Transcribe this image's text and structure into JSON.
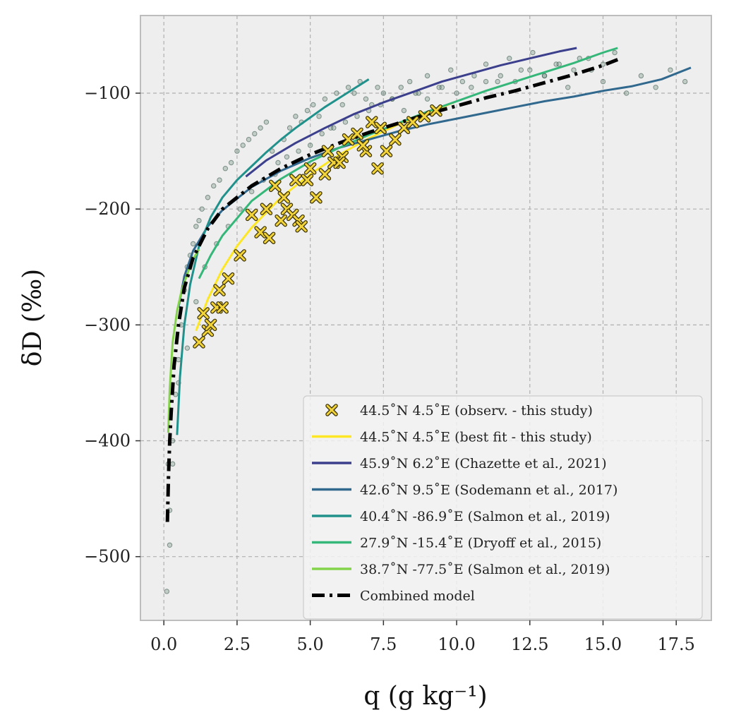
{
  "chart_data": {
    "type": "scatter",
    "xlabel": "q (g kg⁻¹)",
    "ylabel": "δD (‰)",
    "xlim": [
      -0.8,
      18.7
    ],
    "ylim": [
      -555,
      -33
    ],
    "xticks": [
      0.0,
      2.5,
      5.0,
      7.5,
      10.0,
      12.5,
      15.0,
      17.5
    ],
    "xtick_labels": [
      "0.0",
      "2.5",
      "5.0",
      "7.5",
      "10.0",
      "12.5",
      "15.0",
      "17.5"
    ],
    "yticks": [
      -100,
      -200,
      -300,
      -400,
      -500
    ],
    "ytick_labels": [
      "−100",
      "−200",
      "−300",
      "−400",
      "−500"
    ],
    "grid": true,
    "legend_position": "lower-right",
    "series": [
      {
        "name": "44.5˚N 4.5˚E (observ. - this study)",
        "kind": "scatter",
        "marker": "x",
        "color": "#f2d43a",
        "x": [
          1.2,
          1.35,
          1.5,
          1.6,
          1.8,
          1.9,
          2.0,
          2.2,
          2.6,
          3.0,
          3.3,
          3.6,
          3.8,
          4.0,
          4.2,
          4.4,
          4.6,
          4.7,
          4.9,
          5.2,
          5.5,
          5.8,
          6.1,
          6.3,
          6.6,
          6.9,
          7.1,
          7.3,
          7.6,
          7.9,
          8.2,
          8.5,
          8.9,
          9.3,
          3.5,
          4.1,
          4.5,
          5.0,
          5.6,
          6.0,
          6.8,
          7.4
        ],
        "y": [
          -315,
          -290,
          -305,
          -300,
          -285,
          -270,
          -285,
          -260,
          -240,
          -205,
          -220,
          -225,
          -180,
          -210,
          -200,
          -205,
          -210,
          -215,
          -175,
          -190,
          -170,
          -160,
          -155,
          -140,
          -135,
          -150,
          -125,
          -165,
          -150,
          -140,
          -130,
          -125,
          -120,
          -115,
          -200,
          -190,
          -175,
          -165,
          -150,
          -160,
          -145,
          -130
        ]
      },
      {
        "name": "44.5˚N 4.5˚E (best fit - this study)",
        "kind": "line",
        "color": "#fde725",
        "x": [
          1.1,
          1.5,
          2,
          2.5,
          3,
          4,
          5,
          6,
          7,
          8,
          9,
          9.9
        ],
        "y": [
          -305,
          -278,
          -252,
          -232,
          -216,
          -190,
          -170,
          -153,
          -139,
          -127,
          -117,
          -108
        ]
      },
      {
        "name": "45.9˚N 6.2˚E (Chazette et al., 2021)",
        "kind": "line",
        "color": "#3b3f8c",
        "x": [
          2.8,
          3.5,
          4.5,
          5.5,
          6.5,
          7.5,
          8.5,
          9.5,
          10.5,
          11.5,
          12.5,
          13.5,
          14.1
        ],
        "y": [
          -172,
          -158,
          -143,
          -130,
          -118,
          -108,
          -99,
          -90,
          -83,
          -76,
          -70,
          -64,
          -61
        ]
      },
      {
        "name": "42.6˚N 9.5˚E (Sodemann et al., 2017)",
        "kind": "line",
        "color": "#31688e",
        "x": [
          0.5,
          0.7,
          1,
          1.5,
          2,
          3,
          4,
          5,
          6,
          7,
          8,
          9,
          10,
          11,
          12,
          13,
          14,
          15,
          16,
          17,
          18
        ],
        "y": [
          -285,
          -258,
          -236,
          -215,
          -201,
          -181,
          -167,
          -156,
          -147,
          -140,
          -133,
          -127,
          -122,
          -117,
          -112,
          -107,
          -103,
          -98,
          -94,
          -88,
          -78
        ]
      },
      {
        "name": "40.4˚N -86.9˚E (Salmon et al., 2019)",
        "kind": "line",
        "color": "#21918c",
        "x": [
          0.45,
          0.55,
          0.7,
          0.9,
          1.2,
          1.6,
          2,
          2.5,
          3,
          3.5,
          4,
          4.5,
          5,
          5.5,
          6,
          6.5,
          7
        ],
        "y": [
          -395,
          -345,
          -300,
          -265,
          -232,
          -207,
          -190,
          -175,
          -163,
          -151,
          -140,
          -130,
          -121,
          -112,
          -104,
          -96,
          -88
        ]
      },
      {
        "name": "27.9˚N -15.4˚E (Dryoff et al., 2015)",
        "kind": "line",
        "color": "#35b779",
        "x": [
          1.2,
          1.6,
          2,
          3,
          4,
          5,
          6,
          7,
          8,
          9,
          10,
          11,
          12,
          13,
          14,
          15,
          15.5
        ],
        "y": [
          -260,
          -240,
          -223,
          -193,
          -174,
          -159,
          -147,
          -136,
          -126,
          -116,
          -107,
          -98,
          -90,
          -82,
          -74,
          -65,
          -61
        ]
      },
      {
        "name": "38.7˚N -77.5˚E (Salmon et al., 2019)",
        "kind": "line",
        "color": "#84d44b",
        "x": [
          0.15,
          0.2,
          0.3,
          0.45,
          0.6,
          0.8,
          1.0,
          1.2
        ],
        "y": [
          -393,
          -355,
          -315,
          -288,
          -271,
          -256,
          -243,
          -235
        ]
      },
      {
        "name": "Combined model",
        "kind": "line",
        "style": "dashdot",
        "color": "#000000",
        "x": [
          0.12,
          0.16,
          0.2,
          0.25,
          0.35,
          0.5,
          0.7,
          1.0,
          1.5,
          2,
          3,
          4,
          5,
          6,
          7,
          8,
          9,
          10,
          11,
          12,
          13,
          14,
          15,
          15.5
        ],
        "y": [
          -470,
          -430,
          -400,
          -375,
          -335,
          -300,
          -268,
          -242,
          -217,
          -200,
          -180,
          -165,
          -153,
          -143,
          -134,
          -126,
          -118,
          -111,
          -104,
          -98,
          -91,
          -84,
          -76,
          -71
        ]
      },
      {
        "name": "",
        "kind": "scatter",
        "marker": "o",
        "color": "#6f8f80",
        "x": [
          0.1,
          0.2,
          0.3,
          0.4,
          0.5,
          0.6,
          0.7,
          0.8,
          0.9,
          1.0,
          1.1,
          1.2,
          1.3,
          1.5,
          1.7,
          1.9,
          2.1,
          2.3,
          2.5,
          2.7,
          2.9,
          3.1,
          3.3,
          3.5,
          3.7,
          3.9,
          4.1,
          4.3,
          4.5,
          4.7,
          4.9,
          5.1,
          5.3,
          5.5,
          5.7,
          5.9,
          6.1,
          6.3,
          6.5,
          6.7,
          6.9,
          7.1,
          7.3,
          7.5,
          7.8,
          8.1,
          8.4,
          8.7,
          9.0,
          9.4,
          9.8,
          10.2,
          10.6,
          11.0,
          11.4,
          11.8,
          12.2,
          12.6,
          13.0,
          13.4,
          13.8,
          14.2,
          14.6,
          15.0,
          15.4,
          15.8,
          16.3,
          16.8,
          17.3,
          17.8,
          0.3,
          0.5,
          0.8,
          1.1,
          1.4,
          1.8,
          2.2,
          2.6,
          3.0,
          3.4,
          3.8,
          4.2,
          4.6,
          5.0,
          5.4,
          5.8,
          6.2,
          6.6,
          7.0,
          7.4,
          7.8,
          8.2,
          8.6,
          9.0,
          9.5,
          10.0,
          10.5,
          11.0,
          11.5,
          12.0,
          12.5,
          13.0,
          13.5,
          14.0,
          14.5,
          15.0,
          0.2,
          0.15
        ],
        "y": [
          -530,
          -490,
          -420,
          -360,
          -330,
          -300,
          -270,
          -250,
          -240,
          -230,
          -215,
          -210,
          -200,
          -190,
          -180,
          -175,
          -165,
          -160,
          -150,
          -145,
          -140,
          -135,
          -130,
          -125,
          -150,
          -160,
          -140,
          -130,
          -120,
          -125,
          -115,
          -110,
          -120,
          -105,
          -130,
          -100,
          -110,
          -95,
          -100,
          -90,
          -105,
          -110,
          -95,
          -100,
          -105,
          -95,
          -90,
          -100,
          -85,
          -95,
          -80,
          -90,
          -85,
          -75,
          -90,
          -70,
          -80,
          -65,
          -85,
          -75,
          -95,
          -70,
          -80,
          -90,
          -65,
          -100,
          -85,
          -95,
          -80,
          -90,
          -400,
          -350,
          -320,
          -280,
          -250,
          -230,
          -215,
          -200,
          -185,
          -175,
          -170,
          -155,
          -150,
          -145,
          -135,
          -130,
          -125,
          -120,
          -115,
          -110,
          -105,
          -115,
          -100,
          -105,
          -95,
          -100,
          -95,
          -90,
          -85,
          -90,
          -80,
          -85,
          -75,
          -80,
          -70,
          -75,
          -460,
          -420
        ]
      }
    ]
  }
}
